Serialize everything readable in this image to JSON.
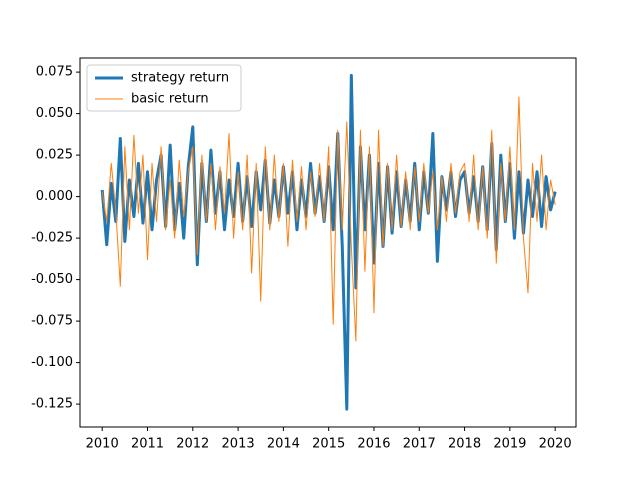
{
  "chart_data": {
    "type": "line",
    "x": [
      2010.0,
      2010.1,
      2010.2,
      2010.3,
      2010.4,
      2010.5,
      2010.6,
      2010.7,
      2010.8,
      2010.9,
      2011.0,
      2011.1,
      2011.2,
      2011.3,
      2011.4,
      2011.5,
      2011.6,
      2011.7,
      2011.8,
      2011.9,
      2012.0,
      2012.1,
      2012.2,
      2012.3,
      2012.4,
      2012.5,
      2012.6,
      2012.7,
      2012.8,
      2012.9,
      2013.0,
      2013.1,
      2013.2,
      2013.3,
      2013.4,
      2013.5,
      2013.6,
      2013.7,
      2013.8,
      2013.9,
      2014.0,
      2014.1,
      2014.2,
      2014.3,
      2014.4,
      2014.5,
      2014.6,
      2014.7,
      2014.8,
      2014.9,
      2015.0,
      2015.1,
      2015.2,
      2015.3,
      2015.4,
      2015.5,
      2015.6,
      2015.7,
      2015.8,
      2015.9,
      2016.0,
      2016.1,
      2016.2,
      2016.3,
      2016.4,
      2016.5,
      2016.6,
      2016.7,
      2016.8,
      2016.9,
      2017.0,
      2017.1,
      2017.2,
      2017.3,
      2017.4,
      2017.5,
      2017.6,
      2017.7,
      2017.8,
      2017.9,
      2018.0,
      2018.1,
      2018.2,
      2018.3,
      2018.4,
      2018.5,
      2018.6,
      2018.7,
      2018.8,
      2018.9,
      2019.0,
      2019.1,
      2019.2,
      2019.3,
      2019.4,
      2019.5,
      2019.6,
      2019.7,
      2019.8,
      2019.9,
      2020.0
    ],
    "series": [
      {
        "name": "strategy return",
        "color": "#1f77b4",
        "width": 3,
        "values": [
          0.004,
          -0.029,
          0.008,
          -0.015,
          0.035,
          -0.027,
          0.01,
          -0.012,
          0.02,
          -0.016,
          0.015,
          -0.02,
          0.01,
          0.025,
          -0.018,
          0.031,
          -0.02,
          0.008,
          -0.025,
          0.018,
          0.042,
          -0.041,
          0.02,
          -0.015,
          0.028,
          -0.01,
          0.015,
          -0.02,
          0.01,
          -0.012,
          0.02,
          -0.015,
          0.012,
          -0.018,
          0.015,
          -0.008,
          0.022,
          -0.016,
          0.01,
          -0.012,
          0.018,
          -0.01,
          0.015,
          -0.02,
          0.01,
          -0.012,
          0.02,
          -0.01,
          0.012,
          -0.015,
          0.018,
          -0.02,
          0.038,
          -0.03,
          -0.128,
          0.073,
          -0.055,
          0.03,
          -0.02,
          0.025,
          -0.04,
          0.02,
          -0.03,
          0.018,
          -0.022,
          0.015,
          -0.018,
          0.01,
          -0.015,
          0.02,
          -0.02,
          0.015,
          -0.01,
          0.038,
          -0.039,
          0.012,
          -0.008,
          0.015,
          -0.012,
          0.01,
          0.015,
          -0.01,
          0.012,
          -0.015,
          0.018,
          -0.02,
          0.032,
          -0.032,
          0.025,
          -0.015,
          0.02,
          -0.025,
          0.015,
          -0.022,
          0.01,
          -0.012,
          0.015,
          -0.018,
          0.012,
          -0.008,
          0.003
        ]
      },
      {
        "name": "basic return",
        "color": "#ff7f0e",
        "width": 1,
        "values": [
          0.003,
          -0.015,
          0.02,
          -0.008,
          -0.054,
          0.03,
          -0.02,
          0.037,
          -0.01,
          0.025,
          -0.038,
          0.02,
          -0.015,
          0.03,
          -0.02,
          0.01,
          -0.025,
          0.022,
          -0.012,
          0.015,
          0.03,
          -0.035,
          0.025,
          -0.015,
          0.02,
          -0.02,
          0.018,
          -0.01,
          0.038,
          -0.025,
          0.015,
          -0.02,
          0.025,
          -0.046,
          0.02,
          -0.063,
          0.03,
          -0.02,
          0.025,
          -0.015,
          0.02,
          -0.03,
          0.022,
          -0.015,
          0.018,
          -0.02,
          0.015,
          -0.012,
          0.02,
          -0.015,
          0.03,
          -0.077,
          0.04,
          -0.02,
          0.045,
          -0.03,
          -0.087,
          0.04,
          -0.045,
          0.03,
          -0.07,
          0.04,
          -0.03,
          0.02,
          -0.02,
          0.025,
          -0.018,
          0.015,
          -0.02,
          0.018,
          -0.015,
          0.02,
          -0.01,
          0.015,
          -0.02,
          0.012,
          -0.015,
          0.02,
          -0.01,
          0.015,
          0.02,
          -0.015,
          0.025,
          -0.02,
          0.018,
          -0.025,
          0.04,
          -0.04,
          0.02,
          -0.015,
          0.03,
          -0.02,
          0.06,
          -0.025,
          -0.058,
          0.02,
          -0.015,
          0.025,
          -0.02,
          0.01,
          -0.005
        ]
      }
    ],
    "xlim": [
      2009.51,
      2020.46
    ],
    "xticks": [
      2010,
      2011,
      2012,
      2013,
      2014,
      2015,
      2016,
      2017,
      2018,
      2019,
      2020
    ],
    "ylim": [
      -0.1388,
      0.0835
    ],
    "yticks": [
      -0.125,
      {
        "value": -0.1,
        "label": "-0.100"
      },
      -0.075,
      {
        "value": -0.05,
        "label": "-0.050"
      },
      -0.025,
      {
        "value": 0,
        "label": "0.000"
      },
      0.025,
      {
        "value": 0.05,
        "label": "0.050"
      },
      0.075
    ],
    "legend": "upper left"
  }
}
